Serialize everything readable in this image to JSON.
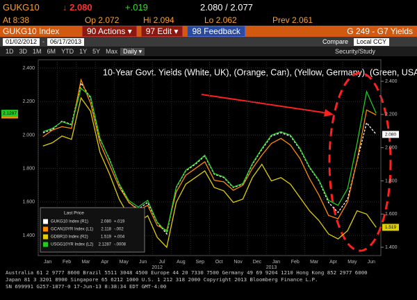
{
  "header": {
    "ticker": "GUKG10",
    "last": "↓ 2.080",
    "change": "+.019",
    "bid_ask": "2.080 / 2.077",
    "time": "At 8:38",
    "open": "Op 2.072",
    "high": "Hi 2.094",
    "low": "Lo 2.062",
    "prev": "Prev  2.061"
  },
  "toolbar": {
    "security": "GUKG10 Index",
    "buttons": [
      "90 Actions ▾",
      "97 Edit ▾",
      "98 Feedback"
    ],
    "function": "G 249 - G7 Yields"
  },
  "range": {
    "start": "01/02/2012",
    "end": "06/17/2013",
    "compare": "Compare",
    "currency": "Local CCY"
  },
  "periods": [
    "1D",
    "3D",
    "1M",
    "6M",
    "YTD",
    "1Y",
    "5Y",
    "Max"
  ],
  "frequency": "Daily ▾",
  "study": "Security/Study",
  "chart_data": {
    "type": "line",
    "title": "10-Year Govt. Yields (White, UK), (Orange, Can), (Yellow, Germany), (Green, USA)",
    "legend_title": "Last Price",
    "categories": [
      "Jan",
      null,
      "Feb",
      null,
      "Mar",
      null,
      "Apr",
      null,
      "May",
      null,
      "Jun",
      null,
      "Jul",
      null,
      "Aug",
      null,
      "Sep",
      null,
      "Oct",
      null,
      "Nov",
      null,
      "Dec",
      null,
      "Jan",
      null,
      "Feb",
      null,
      "Mar",
      null,
      "Apr",
      null,
      "May",
      null,
      "Jun",
      null
    ],
    "year_labels": [
      "2012",
      "2013"
    ],
    "series": [
      {
        "name": "GUKG10 Index (R1)",
        "last": "2.080",
        "change": "+.019",
        "color": "#ffffff",
        "axis": "y2",
        "dashed": true,
        "values": [
          2.09,
          2.11,
          2.16,
          2.14,
          2.39,
          2.3,
          2.05,
          1.93,
          1.78,
          1.67,
          1.63,
          1.67,
          1.55,
          1.48,
          1.76,
          1.86,
          1.9,
          1.95,
          1.84,
          1.82,
          1.76,
          1.78,
          1.9,
          1.99,
          2.07,
          2.09,
          2.07,
          1.99,
          1.88,
          1.8,
          1.67,
          1.61,
          1.69,
          1.92,
          2.15,
          2.08
        ]
      },
      {
        "name": "GCAN10YR Index (L1)",
        "last": "2.118",
        "change": "-.002",
        "color": "#ff8c00",
        "values": [
          1.99,
          2.03,
          2.05,
          2.04,
          2.33,
          2.19,
          1.95,
          1.82,
          1.69,
          1.6,
          1.55,
          1.58,
          1.46,
          1.43,
          1.66,
          1.76,
          1.8,
          1.84,
          1.73,
          1.72,
          1.67,
          1.7,
          1.8,
          1.88,
          1.95,
          1.98,
          1.94,
          1.86,
          1.74,
          1.64,
          1.52,
          1.5,
          1.6,
          1.85,
          2.15,
          2.12
        ]
      },
      {
        "name": "GDBR10 Index (R2)",
        "last": "1.519",
        "change": "+.004",
        "color": "#e0d000",
        "axis": "y2",
        "values": [
          2.01,
          2.03,
          2.07,
          2.05,
          2.3,
          2.22,
          1.97,
          1.84,
          1.69,
          1.59,
          1.55,
          1.59,
          1.46,
          1.4,
          1.67,
          1.78,
          1.82,
          1.86,
          1.76,
          1.74,
          1.67,
          1.69,
          1.82,
          1.9,
          1.8,
          1.82,
          1.78,
          1.7,
          1.62,
          1.56,
          1.48,
          1.45,
          1.5,
          1.62,
          1.6,
          1.52
        ]
      },
      {
        "name": "USGG10YR Index (L2)",
        "last": "2.1287",
        "change": "-.0008",
        "color": "#22cc22",
        "values": [
          2.02,
          2.04,
          2.08,
          2.06,
          2.28,
          2.23,
          1.98,
          1.85,
          1.71,
          1.61,
          1.57,
          1.61,
          1.48,
          1.42,
          1.69,
          1.79,
          1.83,
          1.88,
          1.77,
          1.75,
          1.69,
          1.71,
          1.83,
          1.92,
          2.0,
          2.02,
          2.0,
          1.92,
          1.81,
          1.73,
          1.61,
          1.58,
          1.68,
          1.95,
          2.26,
          2.13
        ]
      }
    ],
    "ylim": [
      1.28,
      2.45
    ],
    "yticks": [
      {
        "value": 1.4,
        "label": "1.400"
      },
      {
        "value": 1.6,
        "label": "1.600"
      },
      {
        "value": 1.8,
        "label": "1.800"
      },
      {
        "value": 2.0,
        "label": "2.000"
      },
      {
        "value": 2.2,
        "label": "2.200"
      },
      {
        "value": 2.4,
        "label": "2.400"
      }
    ],
    "y2lim": [
      1.35,
      2.53
    ],
    "y2ticks": [
      {
        "value": 1.4,
        "label": "1.400"
      },
      {
        "value": 1.6,
        "label": "1.600"
      },
      {
        "value": 1.8,
        "label": "1.800"
      },
      {
        "value": 2.0,
        "label": "2.000"
      },
      {
        "value": 2.2,
        "label": "2.200"
      },
      {
        "value": 2.4,
        "label": "2.400"
      }
    ],
    "grid": true
  },
  "footer": [
    "Australia 61 2 9777 8600 Brazil 5511 3048 4500 Europe 44 20 7330 7500 Germany 49 69 9204 1210 Hong Kong 852 2977 6000",
    "Japan 81 3 3201 8900        Singapore 65 6212 1000        U.S. 1 212 318 2000        Copyright 2013 Bloomberg Finance L.P.",
    "SN 699991 G257-1877-0 17-Jun-13  8:38:34 EDT  GMT-4:00"
  ]
}
